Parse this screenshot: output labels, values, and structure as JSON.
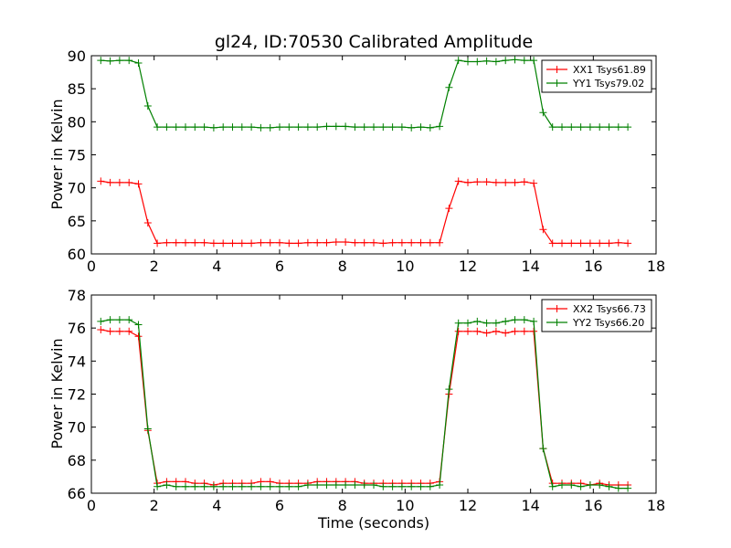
{
  "chart_data": [
    {
      "type": "line",
      "title": "gl24, ID:70530 Calibrated Amplitude",
      "xlabel": "",
      "ylabel": "Power in Kelvin",
      "xlim": [
        0,
        18
      ],
      "ylim": [
        60,
        90
      ],
      "xticks": [
        0,
        2,
        4,
        6,
        8,
        10,
        12,
        14,
        16,
        18
      ],
      "yticks": [
        60,
        65,
        70,
        75,
        80,
        85,
        90
      ],
      "grid": false,
      "legend": "top-right",
      "x": [
        0.3,
        0.6,
        0.9,
        1.2,
        1.5,
        1.8,
        2.1,
        2.4,
        2.7,
        3.0,
        3.3,
        3.6,
        3.9,
        4.2,
        4.5,
        4.8,
        5.1,
        5.4,
        5.7,
        6.0,
        6.3,
        6.6,
        6.9,
        7.2,
        7.5,
        7.8,
        8.1,
        8.4,
        8.7,
        9.0,
        9.3,
        9.6,
        9.9,
        10.2,
        10.5,
        10.8,
        11.1,
        11.4,
        11.7,
        12.0,
        12.3,
        12.6,
        12.9,
        13.2,
        13.5,
        13.8,
        14.1,
        14.4,
        14.7,
        15.0,
        15.3,
        15.6,
        15.9,
        16.2,
        16.5,
        16.8,
        17.1
      ],
      "series": [
        {
          "name": "XX1 Tsys61.89",
          "color": "#ff0000",
          "values": [
            71.0,
            70.8,
            70.8,
            70.8,
            70.6,
            64.7,
            61.6,
            61.7,
            61.7,
            61.7,
            61.7,
            61.7,
            61.6,
            61.6,
            61.6,
            61.6,
            61.6,
            61.7,
            61.7,
            61.7,
            61.6,
            61.6,
            61.7,
            61.7,
            61.7,
            61.8,
            61.8,
            61.7,
            61.7,
            61.7,
            61.6,
            61.7,
            61.7,
            61.7,
            61.7,
            61.7,
            61.7,
            66.9,
            71.0,
            70.8,
            70.9,
            70.9,
            70.8,
            70.8,
            70.8,
            70.9,
            70.7,
            63.7,
            61.6,
            61.6,
            61.6,
            61.6,
            61.6,
            61.6,
            61.6,
            61.7,
            61.6
          ]
        },
        {
          "name": "YY1 Tsys79.02",
          "color": "#008000",
          "values": [
            89.3,
            89.2,
            89.3,
            89.3,
            88.9,
            82.4,
            79.2,
            79.2,
            79.2,
            79.2,
            79.2,
            79.2,
            79.1,
            79.2,
            79.2,
            79.2,
            79.2,
            79.1,
            79.1,
            79.2,
            79.2,
            79.2,
            79.2,
            79.2,
            79.3,
            79.3,
            79.3,
            79.2,
            79.2,
            79.2,
            79.2,
            79.2,
            79.2,
            79.1,
            79.2,
            79.1,
            79.3,
            85.2,
            89.3,
            89.1,
            89.1,
            89.2,
            89.1,
            89.3,
            89.4,
            89.3,
            89.3,
            81.4,
            79.2,
            79.2,
            79.2,
            79.2,
            79.2,
            79.2,
            79.2,
            79.2,
            79.2
          ]
        }
      ]
    },
    {
      "type": "line",
      "title": "",
      "xlabel": "Time (seconds)",
      "ylabel": "Power in Kelvin",
      "xlim": [
        0,
        18
      ],
      "ylim": [
        66,
        78
      ],
      "xticks": [
        0,
        2,
        4,
        6,
        8,
        10,
        12,
        14,
        16,
        18
      ],
      "yticks": [
        66,
        68,
        70,
        72,
        74,
        76,
        78
      ],
      "grid": false,
      "legend": "top-right",
      "x": [
        0.3,
        0.6,
        0.9,
        1.2,
        1.5,
        1.8,
        2.1,
        2.4,
        2.7,
        3.0,
        3.3,
        3.6,
        3.9,
        4.2,
        4.5,
        4.8,
        5.1,
        5.4,
        5.7,
        6.0,
        6.3,
        6.6,
        6.9,
        7.2,
        7.5,
        7.8,
        8.1,
        8.4,
        8.7,
        9.0,
        9.3,
        9.6,
        9.9,
        10.2,
        10.5,
        10.8,
        11.1,
        11.4,
        11.7,
        12.0,
        12.3,
        12.6,
        12.9,
        13.2,
        13.5,
        13.8,
        14.1,
        14.4,
        14.7,
        15.0,
        15.3,
        15.6,
        15.9,
        16.2,
        16.5,
        16.8,
        17.1
      ],
      "series": [
        {
          "name": "XX2 Tsys66.73",
          "color": "#ff0000",
          "values": [
            75.9,
            75.8,
            75.8,
            75.8,
            75.5,
            69.8,
            66.6,
            66.7,
            66.7,
            66.7,
            66.6,
            66.6,
            66.5,
            66.6,
            66.6,
            66.6,
            66.6,
            66.7,
            66.7,
            66.6,
            66.6,
            66.6,
            66.6,
            66.7,
            66.7,
            66.7,
            66.7,
            66.7,
            66.6,
            66.6,
            66.6,
            66.6,
            66.6,
            66.6,
            66.6,
            66.6,
            66.7,
            72.0,
            75.8,
            75.8,
            75.8,
            75.7,
            75.8,
            75.7,
            75.8,
            75.8,
            75.8,
            68.7,
            66.6,
            66.6,
            66.6,
            66.6,
            66.5,
            66.6,
            66.5,
            66.5,
            66.5
          ]
        },
        {
          "name": "YY2 Tsys66.20",
          "color": "#008000",
          "values": [
            76.4,
            76.5,
            76.5,
            76.5,
            76.2,
            69.9,
            66.4,
            66.5,
            66.4,
            66.4,
            66.4,
            66.4,
            66.4,
            66.4,
            66.4,
            66.4,
            66.4,
            66.4,
            66.4,
            66.4,
            66.4,
            66.4,
            66.5,
            66.5,
            66.5,
            66.5,
            66.5,
            66.5,
            66.5,
            66.5,
            66.4,
            66.4,
            66.4,
            66.4,
            66.4,
            66.4,
            66.5,
            72.3,
            76.3,
            76.3,
            76.4,
            76.3,
            76.3,
            76.4,
            76.5,
            76.5,
            76.4,
            68.7,
            66.4,
            66.5,
            66.5,
            66.4,
            66.5,
            66.5,
            66.4,
            66.3,
            66.3
          ]
        }
      ]
    }
  ]
}
